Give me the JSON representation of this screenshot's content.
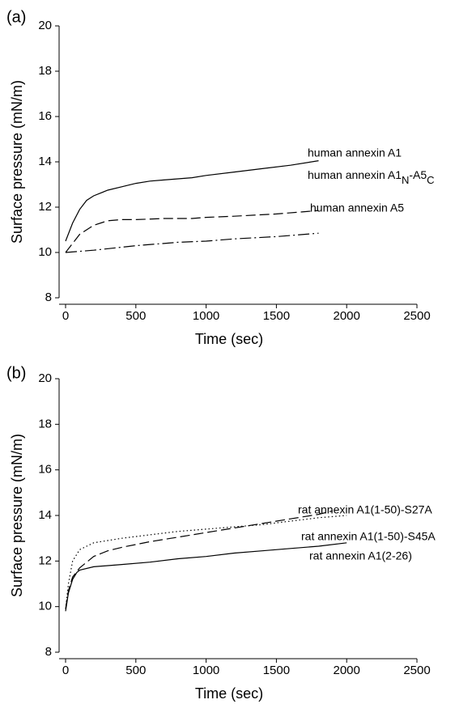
{
  "chart_data": [
    {
      "type": "line",
      "panel_label": "(a)",
      "x_label": "Time (sec)",
      "y_label": "Surface pressure (mN/m)",
      "xlim": [
        0,
        2500
      ],
      "xticks": [
        0,
        500,
        1000,
        1500,
        2000,
        2500
      ],
      "ylim": [
        8,
        20
      ],
      "yticks": [
        8,
        10,
        12,
        14,
        16,
        18,
        20
      ],
      "series": [
        {
          "name": "human annexin A1",
          "color": "#000000",
          "dash": "solid",
          "x": [
            0,
            50,
            100,
            150,
            200,
            300,
            400,
            500,
            600,
            700,
            800,
            900,
            1000,
            1200,
            1400,
            1600,
            1800
          ],
          "values": [
            10.5,
            11.3,
            11.9,
            12.3,
            12.5,
            12.75,
            12.9,
            13.05,
            13.15,
            13.2,
            13.25,
            13.3,
            13.4,
            13.55,
            13.7,
            13.85,
            14.05
          ]
        },
        {
          "name": [
            "human annexin A1",
            "N",
            "-A5",
            "C"
          ],
          "color": "#000000",
          "dash": "dashed",
          "x": [
            0,
            50,
            100,
            200,
            300,
            400,
            500,
            700,
            900,
            1000,
            1200,
            1500,
            1800
          ],
          "values": [
            10.0,
            10.4,
            10.8,
            11.2,
            11.4,
            11.45,
            11.45,
            11.5,
            11.5,
            11.55,
            11.6,
            11.7,
            11.85
          ]
        },
        {
          "name": "human annexin A5",
          "color": "#000000",
          "dash": "dashdot",
          "x": [
            0,
            200,
            500,
            800,
            1000,
            1200,
            1500,
            1800
          ],
          "values": [
            10.0,
            10.1,
            10.3,
            10.45,
            10.5,
            10.6,
            10.7,
            10.85
          ]
        }
      ]
    },
    {
      "type": "line",
      "panel_label": "(b)",
      "x_label": "Time (sec)",
      "y_label": "Surface pressure (mN/m)",
      "xlim": [
        0,
        2500
      ],
      "xticks": [
        0,
        500,
        1000,
        1500,
        2000,
        2500
      ],
      "ylim": [
        8,
        20
      ],
      "yticks": [
        8,
        10,
        12,
        14,
        16,
        18,
        20
      ],
      "series": [
        {
          "name": "rat annexin A1(1-50)-S27A",
          "color": "#000000",
          "dash": "dotted",
          "x": [
            0,
            20,
            50,
            100,
            200,
            400,
            600,
            800,
            1000,
            1200,
            1400,
            1600,
            1800,
            2000
          ],
          "values": [
            9.9,
            11.0,
            12.0,
            12.5,
            12.8,
            13.0,
            13.15,
            13.3,
            13.4,
            13.5,
            13.6,
            13.75,
            13.9,
            14.0
          ]
        },
        {
          "name": "rat annexin A1(1-50)-S45A",
          "color": "#000000",
          "dash": "dashed",
          "x": [
            0,
            20,
            50,
            100,
            200,
            300,
            400,
            600,
            800,
            1000,
            1200,
            1400,
            1600,
            1800,
            1900
          ],
          "values": [
            9.9,
            10.7,
            11.3,
            11.7,
            12.2,
            12.45,
            12.6,
            12.85,
            13.05,
            13.25,
            13.45,
            13.65,
            13.85,
            14.05,
            14.2
          ]
        },
        {
          "name": "rat annexin A1(2-26)",
          "color": "#000000",
          "dash": "solid",
          "x": [
            0,
            20,
            50,
            80,
            100,
            200,
            400,
            600,
            800,
            1000,
            1200,
            1400,
            1600,
            1800,
            2000
          ],
          "values": [
            9.8,
            10.6,
            11.2,
            11.5,
            11.6,
            11.75,
            11.85,
            11.95,
            12.1,
            12.2,
            12.35,
            12.45,
            12.55,
            12.65,
            12.8
          ]
        }
      ]
    }
  ]
}
